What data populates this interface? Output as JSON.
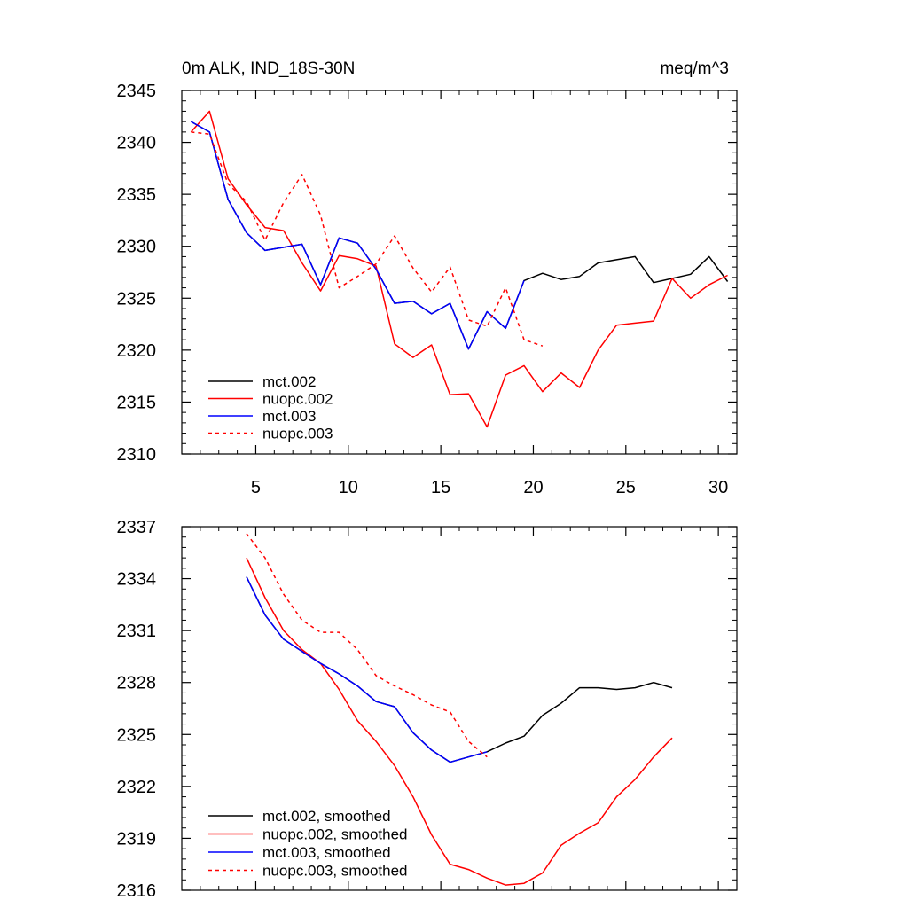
{
  "header": {
    "left_title": "0m ALK, IND_18S-30N",
    "right_title": "meq/m^3"
  },
  "colors": {
    "mct_002": "#000000",
    "nuopc_002": "#ff0000",
    "mct_003": "#0000ff",
    "nuopc_003": "#ff0000"
  },
  "chart_data": [
    {
      "type": "line",
      "title": "0m ALK, IND_18S-30N",
      "units_label": "meq/m^3",
      "xlabel": "",
      "ylabel": "",
      "xlim": [
        1,
        31
      ],
      "ylim": [
        2310,
        2345
      ],
      "xticks": [
        5,
        10,
        15,
        20,
        25,
        30
      ],
      "yticks": [
        2310,
        2315,
        2320,
        2325,
        2330,
        2335,
        2340,
        2345
      ],
      "legend_position": "bottom-left",
      "grid": false,
      "series": [
        {
          "name": "mct.002",
          "style": "solid",
          "color": "#000000",
          "x": [
            1.5,
            2.5,
            3.5,
            4.5,
            5.5,
            6.5,
            7.5,
            8.5,
            9.5,
            10.5,
            11.5,
            12.5,
            13.5,
            14.5,
            15.5,
            16.5,
            17.5,
            18.5,
            19.5,
            20.5,
            21.5,
            22.5,
            23.5,
            24.5,
            25.5,
            26.5,
            27.5,
            28.5,
            29.5,
            30.5
          ],
          "values": [
            2342,
            2341,
            2334.5,
            2331.3,
            2329.6,
            2329.9,
            2330.2,
            2326.3,
            2330.8,
            2330.3,
            2327.8,
            2324.5,
            2324.7,
            2323.5,
            2324.5,
            2320.1,
            2323.7,
            2322.1,
            2326.7,
            2327.4,
            2326.8,
            2327.1,
            2328.4,
            2328.7,
            2329.0,
            2326.5,
            2326.9,
            2327.3,
            2329.0,
            2326.6
          ]
        },
        {
          "name": "nuopc.002",
          "style": "solid",
          "color": "#ff0000",
          "x": [
            1.5,
            2.5,
            3.5,
            4.5,
            5.5,
            6.5,
            7.5,
            8.5,
            9.5,
            10.5,
            11.5,
            12.5,
            13.5,
            14.5,
            15.5,
            16.5,
            17.5,
            18.5,
            19.5,
            20.5,
            21.5,
            22.5,
            23.5,
            24.5,
            25.5,
            26.5,
            27.5,
            28.5,
            29.5,
            30.5
          ],
          "values": [
            2341,
            2343,
            2336.5,
            2334,
            2331.8,
            2331.5,
            2328.4,
            2325.7,
            2329.1,
            2328.8,
            2328.1,
            2320.6,
            2319.3,
            2320.5,
            2315.7,
            2315.8,
            2312.6,
            2317.6,
            2318.5,
            2316.0,
            2317.8,
            2316.4,
            2320.0,
            2322.4,
            2322.6,
            2322.8,
            2326.9,
            2325.0,
            2326.3,
            2327.2
          ]
        },
        {
          "name": "mct.003",
          "style": "solid",
          "color": "#0000ff",
          "x": [
            1.5,
            2.5,
            3.5,
            4.5,
            5.5,
            6.5,
            7.5,
            8.5,
            9.5,
            10.5,
            11.5,
            12.5,
            13.5,
            14.5,
            15.5,
            16.5,
            17.5,
            18.5,
            19.5
          ],
          "values": [
            2342,
            2341,
            2334.5,
            2331.3,
            2329.6,
            2329.9,
            2330.2,
            2326.3,
            2330.8,
            2330.3,
            2327.8,
            2324.5,
            2324.7,
            2323.5,
            2324.5,
            2320.1,
            2323.7,
            2322.1,
            2326.7
          ]
        },
        {
          "name": "nuopc.003",
          "style": "dashed",
          "color": "#ff0000",
          "x": [
            1.5,
            2.5,
            3.5,
            4.5,
            5.5,
            6.5,
            7.5,
            8.5,
            9.5,
            10.5,
            11.5,
            12.5,
            13.5,
            14.5,
            15.5,
            16.5,
            17.5,
            18.5,
            19.5,
            20.5
          ],
          "values": [
            2341,
            2340.8,
            2336,
            2334.3,
            2330.6,
            2334.2,
            2336.9,
            2333.0,
            2326.0,
            2327.1,
            2328.3,
            2331.0,
            2327.9,
            2325.6,
            2328.0,
            2322.9,
            2322.3,
            2326.0,
            2321.0,
            2320.4
          ]
        }
      ]
    },
    {
      "type": "line",
      "title": "",
      "xlabel": "",
      "ylabel": "",
      "xlim": [
        1,
        31
      ],
      "ylim": [
        2316,
        2337
      ],
      "xticks": [
        5,
        10,
        15,
        20,
        25,
        30
      ],
      "yticks": [
        2316,
        2319,
        2322,
        2325,
        2328,
        2331,
        2334,
        2337
      ],
      "legend_position": "bottom-left",
      "grid": false,
      "series": [
        {
          "name": "mct.002, smoothed",
          "style": "solid",
          "color": "#000000",
          "x": [
            4.5,
            5.5,
            6.5,
            7.5,
            8.5,
            9.5,
            10.5,
            11.5,
            12.5,
            13.5,
            14.5,
            15.5,
            16.5,
            17.5,
            18.5,
            19.5,
            20.5,
            21.5,
            22.5,
            23.5,
            24.5,
            25.5,
            26.5,
            27.5
          ],
          "values": [
            2334.1,
            2331.9,
            2330.5,
            2329.8,
            2329.1,
            2328.5,
            2327.8,
            2326.9,
            2326.6,
            2325.1,
            2324.1,
            2323.4,
            2323.7,
            2324.0,
            2324.5,
            2324.9,
            2326.1,
            2326.8,
            2327.7,
            2327.7,
            2327.6,
            2327.7,
            2328.0,
            2327.7
          ]
        },
        {
          "name": "nuopc.002, smoothed",
          "style": "solid",
          "color": "#ff0000",
          "x": [
            4.5,
            5.5,
            6.5,
            7.5,
            8.5,
            9.5,
            10.5,
            11.5,
            12.5,
            13.5,
            14.5,
            15.5,
            16.5,
            17.5,
            18.5,
            19.5,
            20.5,
            21.5,
            22.5,
            23.5,
            24.5,
            25.5,
            26.5,
            27.5
          ],
          "values": [
            2335.2,
            2332.9,
            2331.0,
            2329.9,
            2329.1,
            2327.6,
            2325.8,
            2324.6,
            2323.2,
            2321.4,
            2319.2,
            2317.5,
            2317.2,
            2316.7,
            2316.3,
            2316.4,
            2317.0,
            2318.6,
            2319.3,
            2319.9,
            2321.4,
            2322.4,
            2323.7,
            2324.8
          ]
        },
        {
          "name": "mct.003, smoothed",
          "style": "solid",
          "color": "#0000ff",
          "x": [
            4.5,
            5.5,
            6.5,
            7.5,
            8.5,
            9.5,
            10.5,
            11.5,
            12.5,
            13.5,
            14.5,
            15.5,
            16.5,
            17.5
          ],
          "values": [
            2334.1,
            2331.9,
            2330.5,
            2329.8,
            2329.1,
            2328.5,
            2327.8,
            2326.9,
            2326.6,
            2325.1,
            2324.1,
            2323.4,
            2323.7,
            2324.0
          ]
        },
        {
          "name": "nuopc.003, smoothed",
          "style": "dashed",
          "color": "#ff0000",
          "x": [
            4.5,
            5.5,
            6.5,
            7.5,
            8.5,
            9.5,
            10.5,
            11.5,
            12.5,
            13.5,
            14.5,
            15.5,
            16.5,
            17.5
          ],
          "values": [
            2336.6,
            2335.2,
            2333.1,
            2331.6,
            2330.9,
            2330.9,
            2329.9,
            2328.4,
            2327.8,
            2327.3,
            2326.7,
            2326.3,
            2324.6,
            2323.7
          ]
        }
      ]
    }
  ]
}
